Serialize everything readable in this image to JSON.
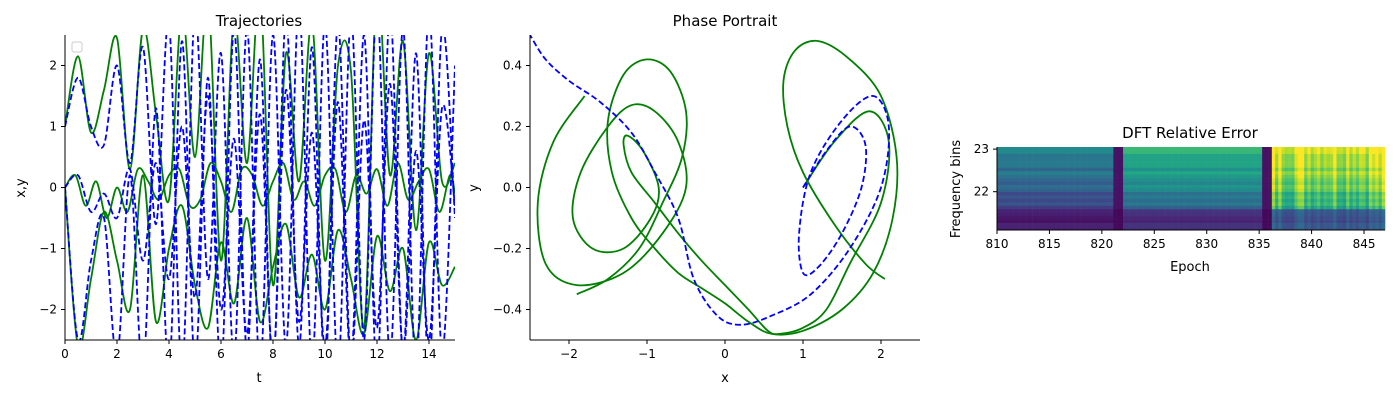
{
  "chart_data": [
    {
      "type": "line",
      "title": "Trajectories",
      "xlabel": "t",
      "ylabel": "x,y",
      "xlim": [
        0,
        15
      ],
      "ylim": [
        -2.5,
        2.5
      ],
      "xticks": [
        0,
        2,
        4,
        6,
        8,
        10,
        12,
        14
      ],
      "yticks": [
        -2,
        -1,
        0,
        1,
        2
      ],
      "xtick_labels": [
        "0",
        "2",
        "4",
        "6",
        "8",
        "10",
        "12",
        "14"
      ],
      "ytick_labels": [
        "−2",
        "−1",
        "0",
        "1",
        "2"
      ],
      "legend": "upper-left (empty)",
      "grid": false,
      "series": [
        {
          "color": "#008000",
          "style": "solid",
          "t": [
            0,
            0.5,
            1,
            1.5,
            2,
            2.5,
            3,
            3.5,
            4,
            4.5,
            5,
            5.5,
            6,
            6.5,
            7,
            7.5,
            8,
            8.5,
            9,
            9.5,
            10,
            10.5,
            11,
            11.5,
            12,
            12.5,
            13,
            13.5,
            14,
            14.5,
            15
          ],
          "values": [
            1,
            2.15,
            0.9,
            1.6,
            2.45,
            0.3,
            2.6,
            1.2,
            -0.2,
            2.9,
            0.5,
            3.1,
            -1.2,
            2.8,
            0.4,
            3.2,
            -1.6,
            2.2,
            0.1,
            2.7,
            -1.2,
            2.0,
            1.9,
            -2.3,
            3.3,
            0.2,
            2.4,
            -0.7,
            2.2,
            0.1,
            0.4
          ]
        },
        {
          "color": "#008000",
          "style": "solid",
          "t": [
            0,
            0.4,
            0.8,
            1.2,
            1.6,
            2,
            2.4,
            2.8,
            3.2,
            3.6,
            4,
            4.4,
            4.8,
            5.2,
            5.6,
            6,
            6.4,
            6.8,
            7.2,
            7.6,
            8,
            8.4,
            8.8,
            9.2,
            9.6,
            10,
            10.4,
            10.8,
            11.2,
            11.6,
            12,
            12.4,
            12.8,
            13.2,
            13.6,
            14,
            14.4,
            14.8,
            15
          ],
          "values": [
            0,
            0.2,
            -0.3,
            0.1,
            -0.5,
            0.0,
            -0.4,
            0.3,
            0.1,
            -0.2,
            0.2,
            0.3,
            -0.3,
            -0.2,
            0.4,
            0.1,
            -0.4,
            0.3,
            0.2,
            -0.3,
            0.1,
            0.4,
            -0.2,
            0.1,
            -0.3,
            0.2,
            0.3,
            -0.4,
            0.2,
            -0.1,
            0.3,
            -0.3,
            0.4,
            -0.2,
            0.1,
            0.3,
            -0.4,
            0.2,
            -0.1
          ]
        },
        {
          "color": "#008000",
          "style": "solid",
          "t": [
            0,
            0.5,
            1,
            1.5,
            2,
            2.5,
            3,
            3.5,
            4,
            4.5,
            5,
            5.5,
            6,
            6.5,
            7,
            7.5,
            8,
            8.5,
            9,
            9.5,
            10,
            10.5,
            11,
            11.5,
            12,
            12.5,
            13,
            13.5,
            14,
            14.5,
            15
          ],
          "values": [
            0,
            -2.6,
            -1.5,
            -0.4,
            -1.2,
            -2.0,
            0.2,
            -2.2,
            -1.0,
            -0.3,
            -1.6,
            -2.3,
            -0.9,
            -1.9,
            -0.5,
            -2.2,
            -1.3,
            -0.6,
            -1.8,
            -1.1,
            -2.0,
            -0.7,
            -1.5,
            -2.4,
            -0.8,
            -1.7,
            -1.0,
            -2.5,
            -0.9,
            -1.6,
            -1.3
          ]
        },
        {
          "color": "#0000ff",
          "style": "dashed",
          "t": [
            0,
            0.5,
            1,
            1.5,
            2,
            2.5,
            3,
            3.5,
            4,
            4.5,
            5,
            5.5,
            6,
            6.5,
            7,
            7.5,
            8,
            8.5,
            9,
            9.5,
            10,
            10.5,
            11,
            11.5,
            12,
            12.5,
            13,
            13.5,
            14,
            14.5,
            15
          ],
          "values": [
            1,
            1.8,
            1.0,
            0.7,
            2.0,
            0.4,
            2.3,
            -0.6,
            2.7,
            -3.0,
            2.9,
            -1.5,
            2.2,
            -2.8,
            2.6,
            -3.0,
            2.5,
            -2.6,
            3.0,
            -2.9,
            2.7,
            -3.0,
            2.8,
            -2.5,
            3.0,
            -2.8,
            2.6,
            -3.0,
            2.9,
            -2.7,
            2.0
          ]
        },
        {
          "color": "#0000ff",
          "style": "dashed",
          "t": [
            0,
            0.5,
            1,
            1.5,
            2,
            2.5,
            3,
            3.5,
            4,
            4.5,
            5,
            5.5,
            6,
            6.5,
            7,
            7.5,
            8,
            8.5,
            9,
            9.5,
            10,
            10.5,
            11,
            11.5,
            12,
            12.5,
            13,
            13.5,
            14,
            14.5,
            15
          ],
          "values": [
            0,
            0.2,
            -0.4,
            -0.1,
            -0.5,
            0.3,
            -1.2,
            0.4,
            -1.5,
            1.0,
            -1.8,
            1.5,
            -2.0,
            0.8,
            -2.4,
            1.2,
            -2.8,
            1.6,
            -2.2,
            0.9,
            -2.6,
            1.4,
            -2.9,
            1.1,
            -2.3,
            1.7,
            -2.7,
            0.6,
            -2.5,
            1.3,
            -0.3
          ]
        },
        {
          "color": "#0000ff",
          "style": "dashed",
          "t": [
            0,
            0.5,
            1,
            1.5,
            2,
            2.5,
            3,
            3.5,
            4,
            4.5,
            5,
            5.5,
            6,
            6.5,
            7,
            7.5,
            8,
            8.5,
            9,
            9.5,
            10,
            10.5,
            11,
            11.5,
            12,
            12.5,
            13,
            13.5,
            14,
            14.5,
            15
          ],
          "values": [
            0,
            -2.5,
            -1.2,
            -0.5,
            -2.8,
            0.2,
            -3.0,
            1.3,
            -3.0,
            2.4,
            -2.9,
            1.8,
            -3.0,
            2.6,
            -2.7,
            2.1,
            -3.0,
            2.8,
            -2.6,
            2.3,
            -3.0,
            2.7,
            -2.8,
            2.5,
            -3.0,
            2.9,
            -2.7,
            2.2,
            -3.0,
            2.6,
            -0.5
          ]
        }
      ]
    },
    {
      "type": "line",
      "title": "Phase Portrait",
      "xlabel": "x",
      "ylabel": "y",
      "xlim": [
        -2.5,
        2.5
      ],
      "ylim": [
        -0.5,
        0.5
      ],
      "xticks": [
        -2,
        -1,
        0,
        1,
        2
      ],
      "yticks": [
        -0.4,
        -0.2,
        0.0,
        0.2,
        0.4
      ],
      "xtick_labels": [
        "−2",
        "−1",
        "0",
        "1",
        "2"
      ],
      "ytick_labels": [
        "−0.4",
        "−0.2",
        "0.0",
        "0.2",
        "0.4"
      ],
      "grid": false,
      "series": [
        {
          "color": "#008000",
          "style": "solid",
          "x": [
            1.0,
            1.4,
            1.85,
            2.1,
            2.0,
            1.6,
            1.3,
            1.0,
            0.7,
            0.55,
            0.3,
            0.0,
            -0.3,
            -0.6,
            -0.9,
            -1.2,
            -1.3,
            -1.25,
            -1.05,
            -0.85,
            -0.95,
            -1.3,
            -1.7,
            -1.95,
            -1.85,
            -1.5,
            -1.2,
            -0.9,
            -0.6,
            -0.5,
            -0.8,
            -1.3,
            -1.9,
            -2.3,
            -2.4,
            -2.2,
            -1.8
          ],
          "y": [
            0.0,
            0.15,
            0.25,
            0.15,
            -0.05,
            -0.25,
            -0.4,
            -0.46,
            -0.48,
            -0.47,
            -0.4,
            -0.32,
            -0.24,
            -0.15,
            -0.05,
            0.05,
            0.14,
            0.17,
            0.12,
            0.0,
            -0.1,
            -0.2,
            -0.2,
            -0.1,
            0.05,
            0.2,
            0.27,
            0.25,
            0.15,
            0.0,
            -0.15,
            -0.28,
            -0.32,
            -0.25,
            -0.05,
            0.15,
            0.3
          ]
        },
        {
          "color": "#008000",
          "style": "solid",
          "x": [
            -1.9,
            -1.5,
            -1.1,
            -0.8,
            -0.55,
            -0.5,
            -0.7,
            -1.0,
            -1.3,
            -1.5,
            -1.45,
            -1.2,
            -0.9,
            -0.6,
            -0.3,
            0.0,
            0.3,
            0.6,
            1.0,
            1.5,
            1.9,
            2.15,
            2.2,
            2.0,
            1.6,
            1.2,
            0.9,
            0.75,
            0.8,
            1.0,
            1.4,
            1.8,
            2.05
          ],
          "y": [
            -0.35,
            -0.3,
            -0.2,
            -0.05,
            0.1,
            0.25,
            0.38,
            0.42,
            0.37,
            0.22,
            0.05,
            -0.1,
            -0.2,
            -0.28,
            -0.33,
            -0.38,
            -0.44,
            -0.48,
            -0.47,
            -0.4,
            -0.28,
            -0.1,
            0.1,
            0.3,
            0.42,
            0.48,
            0.45,
            0.35,
            0.2,
            0.05,
            -0.12,
            -0.25,
            -0.3
          ]
        },
        {
          "color": "#0000ff",
          "style": "dashed",
          "x": [
            1.0,
            1.3,
            1.6,
            1.8,
            1.75,
            1.5,
            1.2,
            1.0,
            0.95,
            1.1,
            1.5,
            1.9,
            2.1,
            2.0,
            1.6,
            1.1,
            0.6,
            0.2,
            -0.1,
            -0.4,
            -0.6,
            -0.9,
            -1.2,
            -1.6,
            -2.0,
            -2.3,
            -2.5
          ],
          "y": [
            0.0,
            0.12,
            0.2,
            0.14,
            0.0,
            -0.15,
            -0.26,
            -0.28,
            -0.15,
            0.05,
            0.22,
            0.3,
            0.2,
            0.0,
            -0.2,
            -0.35,
            -0.42,
            -0.45,
            -0.42,
            -0.3,
            -0.1,
            0.05,
            0.18,
            0.28,
            0.35,
            0.42,
            0.5
          ]
        }
      ]
    },
    {
      "type": "heatmap",
      "title": "DFT Relative Error",
      "xlabel": "Epoch",
      "ylabel": "Frequency bins",
      "xlim": [
        810,
        847
      ],
      "ylim": [
        21.1,
        23.05
      ],
      "xticks": [
        810,
        815,
        820,
        825,
        830,
        835,
        840,
        845
      ],
      "yticks": [
        22,
        23
      ],
      "xtick_labels": [
        "810",
        "815",
        "820",
        "825",
        "830",
        "835",
        "840",
        "845"
      ],
      "ytick_labels": [
        "22",
        "23"
      ],
      "colormap": "viridis",
      "grid": false
    }
  ]
}
